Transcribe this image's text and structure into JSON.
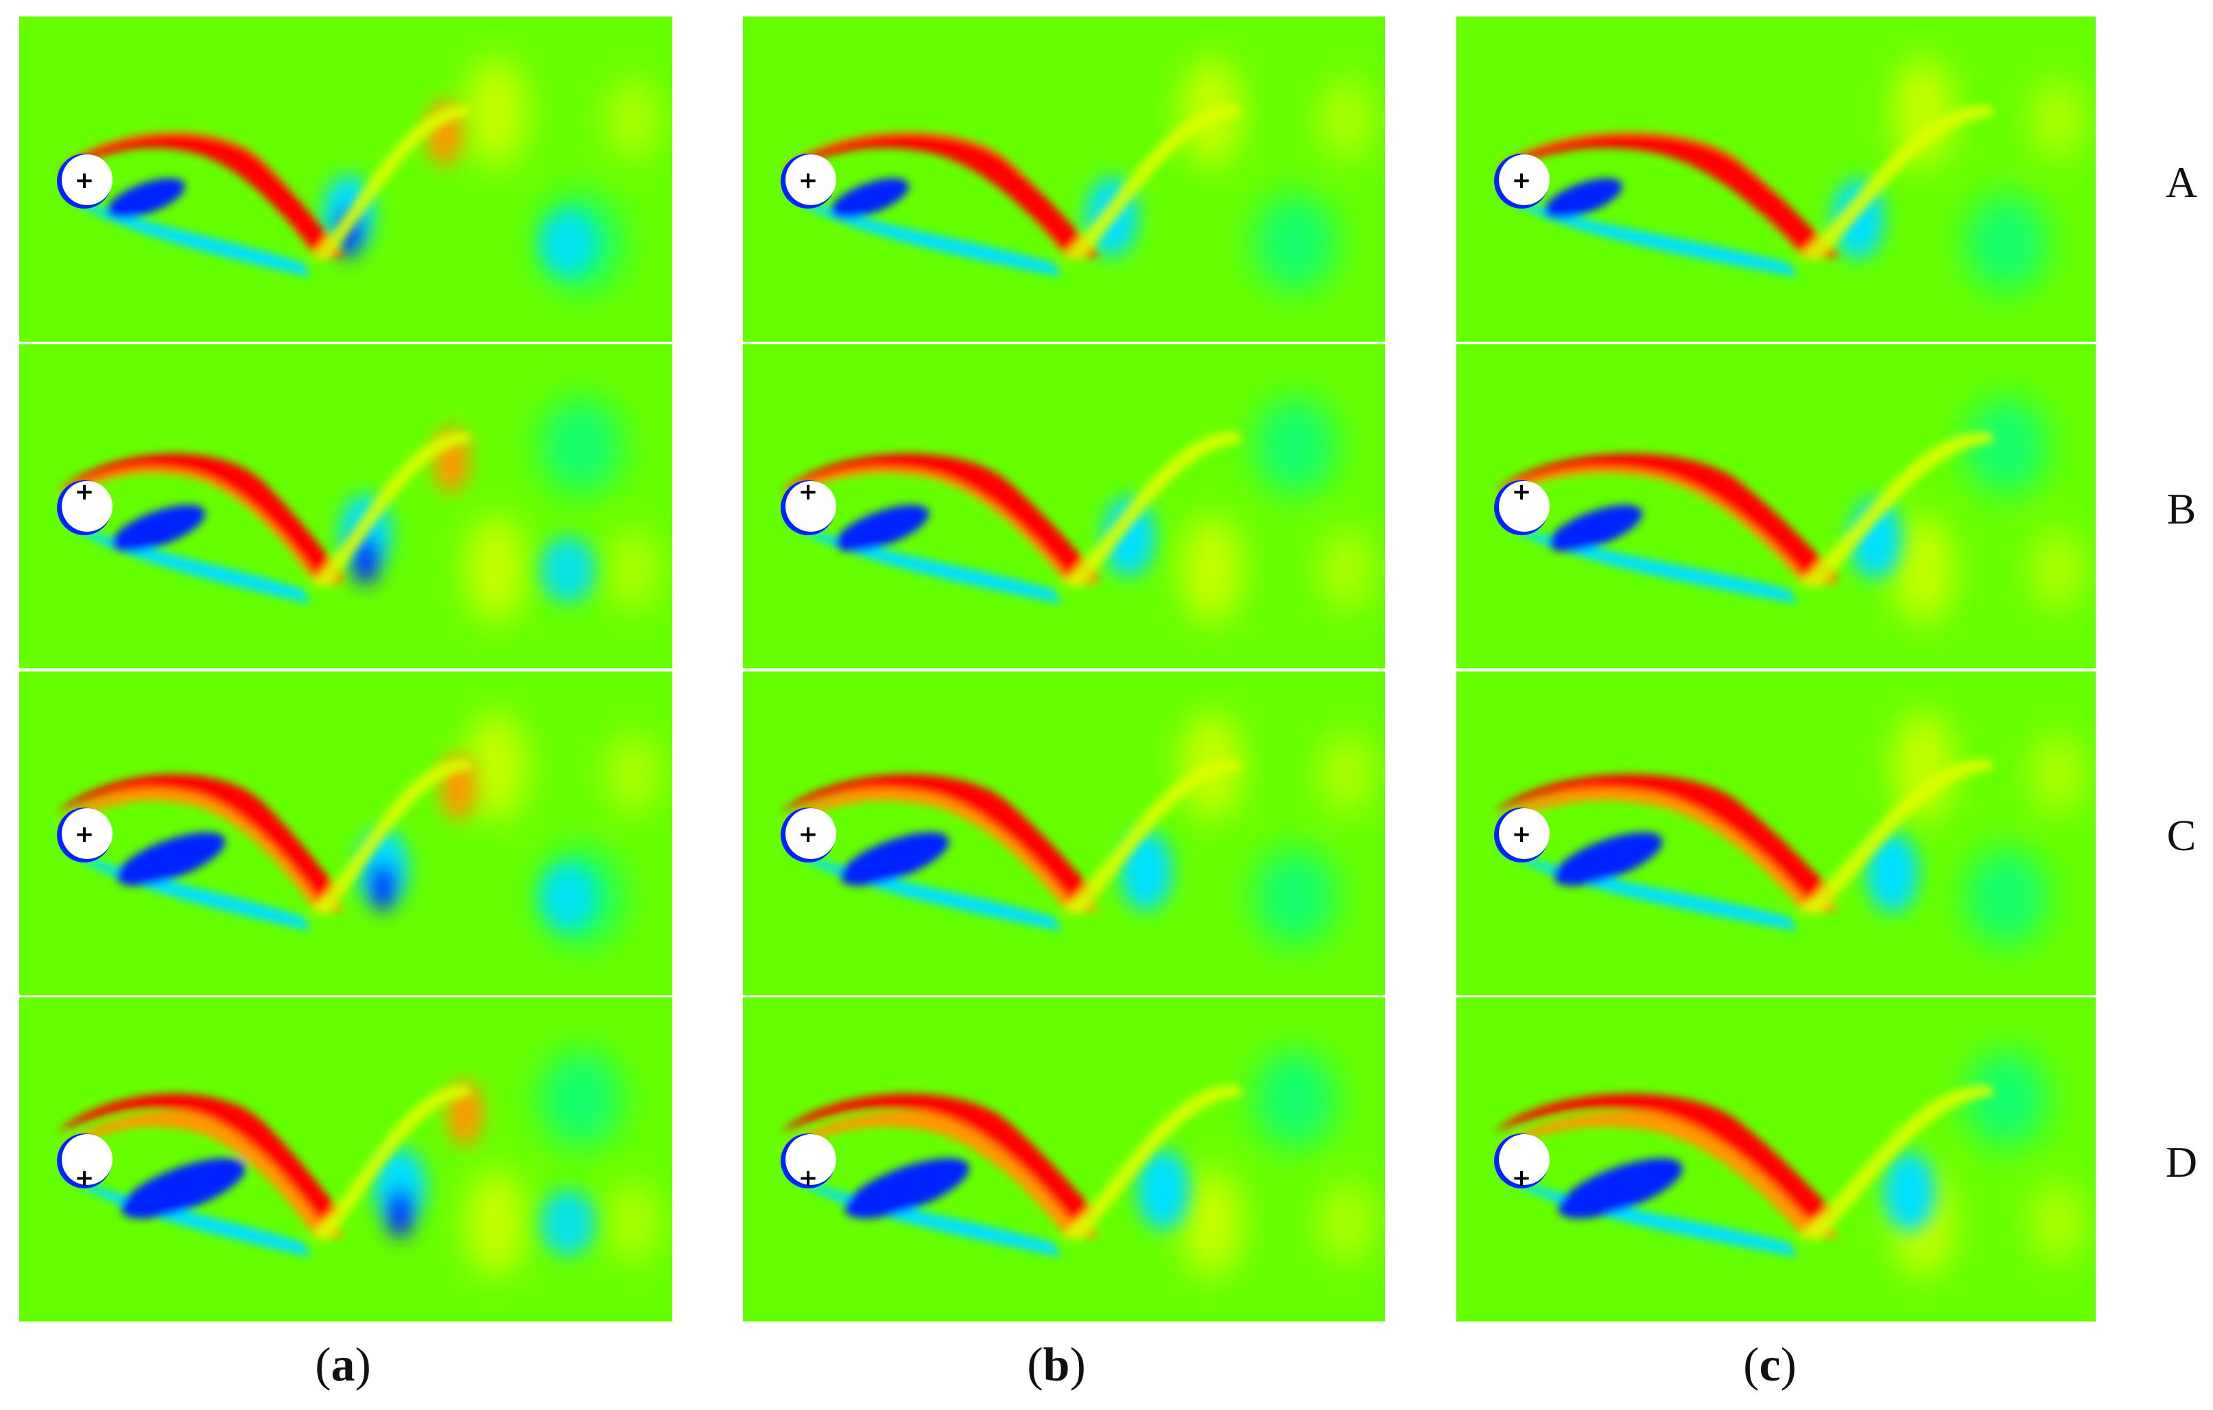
{
  "figure": {
    "columns": [
      {
        "id": "a",
        "caption_open": "(",
        "caption_letter": "a",
        "caption_close": ")"
      },
      {
        "id": "b",
        "caption_open": "(",
        "caption_letter": "b",
        "caption_close": ")"
      },
      {
        "id": "c",
        "caption_open": "(",
        "caption_letter": "c",
        "caption_close": ")"
      }
    ],
    "rows": [
      {
        "id": "A",
        "label": "A"
      },
      {
        "id": "B",
        "label": "B"
      },
      {
        "id": "C",
        "label": "C"
      },
      {
        "id": "D",
        "label": "D"
      }
    ],
    "colors": {
      "background_field": "#66ff00",
      "positive_core": "#ff0000",
      "positive_mid": "#ff9900",
      "weak_positive": "#ddff00",
      "negative_core": "#0022ff",
      "negative_mid": "#00e0ff",
      "weak_negative": "#00ff88",
      "cylinder": "#ffffff"
    },
    "cylinder_marker": "+"
  }
}
